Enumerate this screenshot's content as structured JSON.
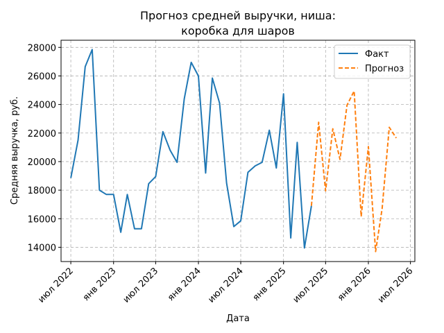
{
  "chart_data": {
    "type": "line",
    "title_lines": [
      "Прогноз средней выручки, ниша:",
      "коробка для шаров"
    ],
    "xlabel": "Дата",
    "ylabel": "Средняя выручка, руб.",
    "ylim": [
      13000,
      28500
    ],
    "xlim": [
      "2022-05-20",
      "2026-07-20"
    ],
    "yticks": [
      14000,
      16000,
      18000,
      20000,
      22000,
      24000,
      26000,
      28000
    ],
    "xticks": [
      {
        "date": "2022-07-01",
        "label": "июл 2022"
      },
      {
        "date": "2023-01-01",
        "label": "янв 2023"
      },
      {
        "date": "2023-07-01",
        "label": "июл 2023"
      },
      {
        "date": "2024-01-01",
        "label": "янв 2024"
      },
      {
        "date": "2024-07-01",
        "label": "июл 2024"
      },
      {
        "date": "2025-01-01",
        "label": "янв 2025"
      },
      {
        "date": "2025-07-01",
        "label": "июл 2025"
      },
      {
        "date": "2026-01-01",
        "label": "янв 2026"
      },
      {
        "date": "2026-07-01",
        "label": "июл 2026"
      }
    ],
    "grid": true,
    "legend_position": "top-right",
    "series": [
      {
        "name": "Факт",
        "color": "#1f77b4",
        "style": "solid",
        "points": [
          {
            "x": "2022-07-01",
            "y": 18850
          },
          {
            "x": "2022-08-01",
            "y": 21500
          },
          {
            "x": "2022-09-01",
            "y": 26650
          },
          {
            "x": "2022-10-01",
            "y": 27850
          },
          {
            "x": "2022-11-01",
            "y": 18000
          },
          {
            "x": "2022-12-01",
            "y": 17700
          },
          {
            "x": "2023-01-01",
            "y": 17700
          },
          {
            "x": "2023-02-01",
            "y": 15050
          },
          {
            "x": "2023-03-01",
            "y": 17700
          },
          {
            "x": "2023-04-01",
            "y": 15300
          },
          {
            "x": "2023-05-01",
            "y": 15300
          },
          {
            "x": "2023-06-01",
            "y": 18450
          },
          {
            "x": "2023-07-01",
            "y": 18950
          },
          {
            "x": "2023-08-01",
            "y": 22100
          },
          {
            "x": "2023-09-01",
            "y": 20800
          },
          {
            "x": "2023-10-01",
            "y": 19950
          },
          {
            "x": "2023-11-01",
            "y": 24400
          },
          {
            "x": "2023-12-01",
            "y": 26950
          },
          {
            "x": "2024-01-01",
            "y": 26000
          },
          {
            "x": "2024-02-01",
            "y": 19200
          },
          {
            "x": "2024-03-01",
            "y": 25850
          },
          {
            "x": "2024-04-01",
            "y": 24100
          },
          {
            "x": "2024-05-01",
            "y": 18500
          },
          {
            "x": "2024-06-01",
            "y": 15450
          },
          {
            "x": "2024-07-01",
            "y": 15850
          },
          {
            "x": "2024-08-01",
            "y": 19250
          },
          {
            "x": "2024-09-01",
            "y": 19700
          },
          {
            "x": "2024-10-01",
            "y": 19950
          },
          {
            "x": "2024-11-01",
            "y": 22200
          },
          {
            "x": "2024-12-01",
            "y": 19550
          },
          {
            "x": "2025-01-01",
            "y": 24750
          },
          {
            "x": "2025-02-01",
            "y": 14650
          },
          {
            "x": "2025-03-01",
            "y": 21350
          },
          {
            "x": "2025-04-01",
            "y": 13950
          },
          {
            "x": "2025-05-01",
            "y": 16900
          }
        ]
      },
      {
        "name": "Прогноз",
        "color": "#ff7f0e",
        "style": "dashed",
        "points": [
          {
            "x": "2025-05-01",
            "y": 16900
          },
          {
            "x": "2025-06-01",
            "y": 22750
          },
          {
            "x": "2025-07-01",
            "y": 17950
          },
          {
            "x": "2025-08-01",
            "y": 22300
          },
          {
            "x": "2025-09-01",
            "y": 20150
          },
          {
            "x": "2025-10-01",
            "y": 23950
          },
          {
            "x": "2025-11-01",
            "y": 24950
          },
          {
            "x": "2025-12-01",
            "y": 16150
          },
          {
            "x": "2026-01-01",
            "y": 21050
          },
          {
            "x": "2026-02-01",
            "y": 13700
          },
          {
            "x": "2026-03-01",
            "y": 16700
          },
          {
            "x": "2026-04-01",
            "y": 22400
          },
          {
            "x": "2026-05-01",
            "y": 21650
          }
        ]
      }
    ]
  }
}
